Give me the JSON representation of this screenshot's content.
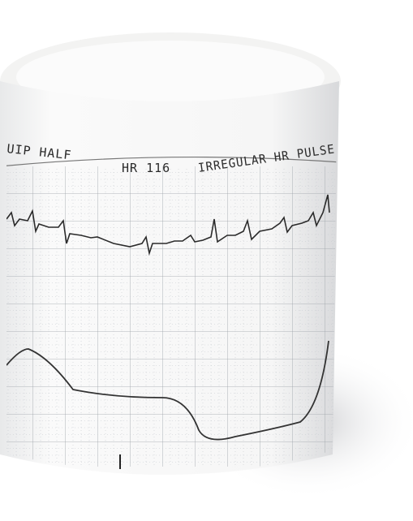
{
  "photo": {
    "strip_header": {
      "mode": "UIP HALF",
      "heart_rate": "HR 116",
      "alert": "IRREGULAR HR PULSE"
    }
  }
}
